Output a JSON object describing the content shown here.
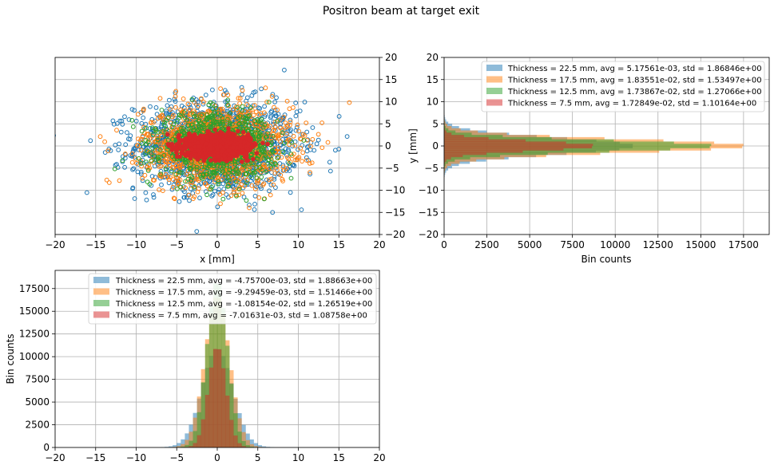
{
  "figure": {
    "title": "Positron beam at target exit"
  },
  "colors": {
    "blue": "#1f77b4",
    "orange": "#ff7f0e",
    "green": "#2ca02c",
    "red": "#d62728",
    "grid": "#b0b0b0"
  },
  "chart_data": [
    {
      "id": "scatter-xy",
      "type": "scatter",
      "title": "",
      "xlabel": "x [mm]",
      "ylabel": "",
      "xlim": [
        -20,
        20
      ],
      "ylim": [
        -20,
        20
      ],
      "y_axis_side": "right",
      "grid": true,
      "x_ticks": [
        "−20",
        "−15",
        "−10",
        "−5",
        "0",
        "5",
        "10",
        "15",
        "20"
      ],
      "y_ticks": [
        "−20",
        "−15",
        "−10",
        "−5",
        "0",
        "5",
        "10",
        "15",
        "20"
      ],
      "series": [
        {
          "color": "blue",
          "marker": "hollow-circle",
          "center": [
            0,
            0
          ],
          "std": [
            5.0,
            5.0
          ],
          "count": 1500
        },
        {
          "color": "orange",
          "marker": "hollow-circle",
          "center": [
            0,
            0
          ],
          "std": [
            4.5,
            4.5
          ],
          "count": 1300
        },
        {
          "color": "green",
          "marker": "hollow-circle",
          "center": [
            0,
            0
          ],
          "std": [
            3.5,
            3.5
          ],
          "count": 900
        },
        {
          "color": "red",
          "marker": "filled-circle",
          "center": [
            0,
            0
          ],
          "std": [
            1.9,
            1.2
          ],
          "count": 1400
        }
      ]
    },
    {
      "id": "hist-y",
      "type": "bar",
      "orientation": "horizontal",
      "title": "",
      "xlabel": "Bin counts",
      "ylabel": "y [mm]",
      "xlim": [
        0,
        19000
      ],
      "ylim": [
        -20,
        20
      ],
      "grid": true,
      "legend": "top-right",
      "x_ticks": [
        "0",
        "2500",
        "5000",
        "7500",
        "10000",
        "12500",
        "15000",
        "17500"
      ],
      "x_tick_values": [
        0,
        2500,
        5000,
        7500,
        10000,
        12500,
        15000,
        17500
      ],
      "y_ticks": [
        "−20",
        "−15",
        "−10",
        "−5",
        "0",
        "5",
        "10",
        "15",
        "20"
      ],
      "bin_width": 0.5,
      "series": [
        {
          "name": "Thickness = 22.5 mm, avg = 5.17561e-03, std = 1.86846e+00",
          "color": "blue",
          "mean": 0.00517561,
          "std": 1.86846,
          "peak": 11000
        },
        {
          "name": "Thickness = 17.5 mm, avg = 1.83551e-02, std = 1.53497e+00",
          "color": "orange",
          "mean": 0.0183551,
          "std": 1.53497,
          "peak": 17500
        },
        {
          "name": "Thickness = 12.5 mm, avg = 1.73867e-02, std = 1.27066e+00",
          "color": "green",
          "mean": 0.0173867,
          "std": 1.27066,
          "peak": 15700
        },
        {
          "name": "Thickness = 7.5 mm, avg = 1.72849e-02, std = 1.10164e+00",
          "color": "red",
          "mean": 0.0172849,
          "std": 1.10164,
          "peak": 8800
        }
      ]
    },
    {
      "id": "hist-x",
      "type": "bar",
      "orientation": "vertical",
      "title": "",
      "xlabel": "",
      "ylabel": "Bin counts",
      "xlim": [
        -20,
        20
      ],
      "ylim": [
        0,
        19500
      ],
      "grid": true,
      "legend": "top-center",
      "x_ticks": [
        "−20",
        "−15",
        "−10",
        "−5",
        "0",
        "5",
        "10",
        "15",
        "20"
      ],
      "y_ticks": [
        "0",
        "2500",
        "5000",
        "7500",
        "10000",
        "12500",
        "15000",
        "17500"
      ],
      "y_tick_values": [
        0,
        2500,
        5000,
        7500,
        10000,
        12500,
        15000,
        17500
      ],
      "bin_width": 0.5,
      "series": [
        {
          "name": "Thickness = 22.5 mm, avg = -4.75700e-03, std = 1.88663e+00",
          "color": "blue",
          "mean": -0.004757,
          "std": 1.88663,
          "peak": 10800
        },
        {
          "name": "Thickness = 17.5 mm, avg = -9.29459e-03, std = 1.51466e+00",
          "color": "orange",
          "mean": -0.00929459,
          "std": 1.51466,
          "peak": 16500
        },
        {
          "name": "Thickness = 12.5 mm, avg = -1.08154e-02, std = 1.26519e+00",
          "color": "green",
          "mean": -0.0108154,
          "std": 1.26519,
          "peak": 18200
        },
        {
          "name": "Thickness = 7.5 mm, avg = -7.01631e-03, std = 1.08758e+00",
          "color": "red",
          "mean": -0.00701631,
          "std": 1.08758,
          "peak": 11000
        }
      ]
    }
  ]
}
